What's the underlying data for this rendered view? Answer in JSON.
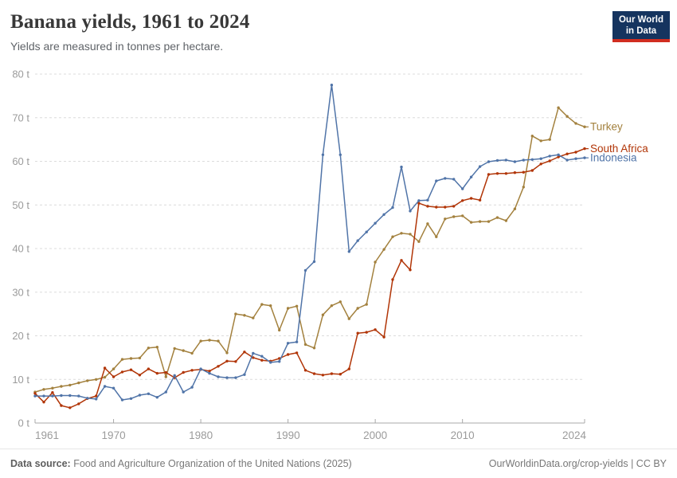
{
  "header": {
    "title": "Banana yields, 1961 to 2024",
    "subtitle": "Yields are measured in tonnes per hectare.",
    "logo": {
      "line1": "Our World",
      "line2": "in Data",
      "bg": "#15345f",
      "stripe": "#d12d20"
    }
  },
  "footer": {
    "source_label": "Data source:",
    "source_text": " Food and Agriculture Organization of the United Nations (2025)",
    "link_text": "OurWorldinData.org/crop-yields",
    "separator": " | ",
    "license": "CC BY"
  },
  "chart_data": {
    "type": "line",
    "title": "Banana yields, 1961 to 2024",
    "unit": "tonnes per hectare",
    "ylim": [
      0,
      80
    ],
    "y_ticks": [
      0,
      10,
      20,
      30,
      40,
      50,
      60,
      70,
      80
    ],
    "y_tick_suffix": " t",
    "x_ticks": [
      1961,
      1970,
      1980,
      1990,
      2000,
      2010,
      2024
    ],
    "grid": "dashed-horizontal",
    "grid_color": "#dcdcdc",
    "axis_color": "#a8a8a8",
    "tick_label_color": "#9b9b9b",
    "legend_position": "end-of-line-labels",
    "years": [
      1961,
      1962,
      1963,
      1964,
      1965,
      1966,
      1967,
      1968,
      1969,
      1970,
      1971,
      1972,
      1973,
      1974,
      1975,
      1976,
      1977,
      1978,
      1979,
      1980,
      1981,
      1982,
      1983,
      1984,
      1985,
      1986,
      1987,
      1988,
      1989,
      1990,
      1991,
      1992,
      1993,
      1994,
      1995,
      1996,
      1997,
      1998,
      1999,
      2000,
      2001,
      2002,
      2003,
      2004,
      2005,
      2006,
      2007,
      2008,
      2009,
      2010,
      2011,
      2012,
      2013,
      2014,
      2015,
      2016,
      2017,
      2018,
      2019,
      2020,
      2021,
      2022,
      2023,
      2024
    ],
    "series": [
      {
        "name": "Turkey",
        "color": "#a3813e",
        "values": [
          7.1,
          7.7,
          8.0,
          8.4,
          8.7,
          9.2,
          9.7,
          10.0,
          10.5,
          12.4,
          14.6,
          14.8,
          14.9,
          17.2,
          17.4,
          10.6,
          17.1,
          16.6,
          16.0,
          18.8,
          19.0,
          18.8,
          16.1,
          25.0,
          24.7,
          24.1,
          27.2,
          26.9,
          21.3,
          26.3,
          26.8,
          18.0,
          17.2,
          24.8,
          26.9,
          27.8,
          23.9,
          26.3,
          27.2,
          36.9,
          39.8,
          42.7,
          43.5,
          43.3,
          41.6,
          45.7,
          42.7,
          46.8,
          47.3,
          47.5,
          46.0,
          46.2,
          46.2,
          47.1,
          46.4,
          49.1,
          54.1,
          65.8,
          64.7,
          65.0,
          72.3,
          70.3,
          68.7,
          67.9
        ]
      },
      {
        "name": "South Africa",
        "color": "#b13507",
        "values": [
          6.8,
          4.8,
          7.0,
          4.0,
          3.5,
          4.4,
          5.6,
          6.2,
          12.6,
          10.6,
          11.7,
          12.2,
          11.0,
          12.4,
          11.4,
          11.6,
          10.4,
          11.6,
          12.1,
          12.3,
          11.9,
          13.0,
          14.2,
          14.1,
          16.3,
          15.0,
          14.4,
          14.2,
          14.8,
          15.7,
          16.1,
          12.1,
          11.3,
          11.0,
          11.3,
          11.2,
          12.4,
          20.6,
          20.8,
          21.4,
          19.7,
          32.9,
          37.3,
          35.1,
          50.4,
          49.7,
          49.5,
          49.5,
          49.7,
          51.0,
          51.5,
          51.1,
          57.0,
          57.2,
          57.2,
          57.4,
          57.5,
          57.9,
          59.4,
          60.1,
          61.0,
          61.7,
          62.1,
          62.9
        ]
      },
      {
        "name": "Indonesia",
        "color": "#5074a8",
        "values": [
          6.2,
          6.2,
          6.2,
          6.3,
          6.3,
          6.2,
          5.7,
          5.5,
          8.4,
          8.0,
          5.3,
          5.6,
          6.4,
          6.7,
          5.9,
          7.1,
          10.9,
          7.1,
          8.2,
          12.4,
          11.4,
          10.6,
          10.4,
          10.4,
          11.1,
          16.0,
          15.3,
          13.9,
          14.1,
          18.3,
          18.6,
          35.0,
          37.0,
          61.5,
          77.5,
          61.5,
          39.3,
          41.8,
          43.8,
          45.8,
          47.8,
          49.4,
          58.7,
          48.6,
          51.0,
          51.1,
          55.5,
          56.1,
          55.9,
          53.7,
          56.4,
          58.8,
          59.9,
          60.2,
          60.3,
          59.9,
          60.3,
          60.4,
          60.6,
          61.2,
          61.5,
          60.3,
          60.6,
          60.8
        ]
      }
    ]
  }
}
